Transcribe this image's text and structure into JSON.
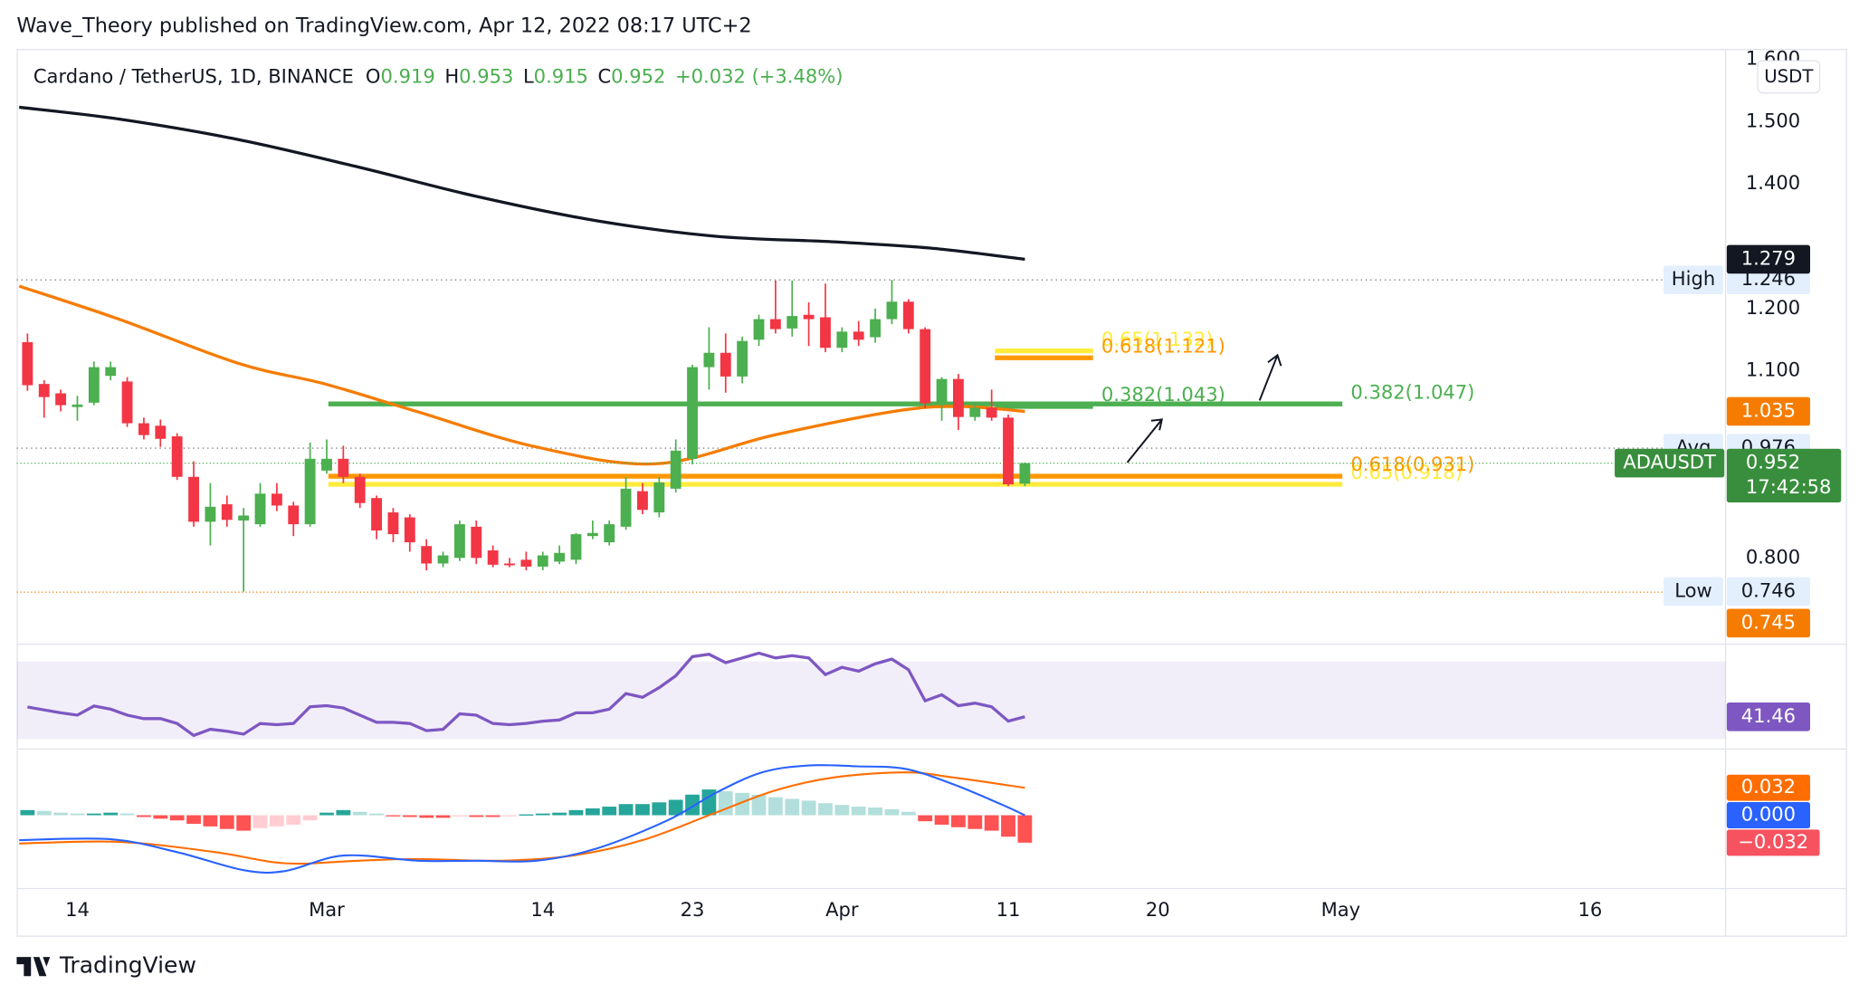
{
  "header": {
    "text": "Wave_Theory published on TradingView.com, Apr 12, 2022 08:17 UTC+2"
  },
  "footer": {
    "brand": "TradingView"
  },
  "chart_data": {
    "type": "candlestick",
    "symbol": "Cardano / TetherUS, 1D, BINANCE",
    "ohlc_keys": [
      "O",
      "H",
      "L",
      "C"
    ],
    "change_label": "+0.032 (+3.48%)",
    "currency": "USDT",
    "symbol_tag": "ADAUSDT",
    "countdown": "17:42:58",
    "up_color": "#4caf50",
    "down_color": "#f23645",
    "open": [
      1.146,
      1.079,
      1.064,
      1.042,
      1.049,
      1.092,
      1.083,
      1.016,
      1.012,
      0.995,
      0.93,
      0.858,
      0.886,
      0.86,
      0.854,
      0.903,
      0.884,
      0.854,
      0.94,
      0.959,
      0.93,
      0.896,
      0.873,
      0.865,
      0.819,
      0.791,
      0.8,
      0.85,
      0.812,
      0.791,
      0.797,
      0.786,
      0.794,
      0.797,
      0.835,
      0.825,
      0.85,
      0.907,
      0.873,
      0.911,
      0.959,
      1.106,
      1.129,
      1.091,
      1.15,
      1.183,
      1.168,
      1.19,
      1.186,
      1.137,
      1.163,
      1.154,
      1.183,
      1.211,
      1.167,
      1.048,
      1.087,
      1.026,
      1.041,
      1.025,
      0.919
    ],
    "high": [
      1.16,
      1.085,
      1.07,
      1.06,
      1.115,
      1.115,
      1.09,
      1.025,
      1.022,
      1.0,
      0.955,
      0.92,
      0.9,
      0.88,
      0.92,
      0.92,
      0.89,
      0.985,
      0.99,
      0.98,
      0.935,
      0.9,
      0.88,
      0.87,
      0.83,
      0.81,
      0.86,
      0.86,
      0.82,
      0.8,
      0.81,
      0.81,
      0.82,
      0.84,
      0.86,
      0.86,
      0.93,
      0.92,
      0.93,
      0.99,
      1.11,
      1.17,
      1.16,
      1.155,
      1.19,
      1.245,
      1.245,
      1.21,
      1.24,
      1.17,
      1.18,
      1.2,
      1.246,
      1.215,
      1.17,
      1.09,
      1.095,
      1.05,
      1.07,
      1.03,
      0.953
    ],
    "low": [
      1.068,
      1.025,
      1.035,
      1.02,
      1.045,
      1.085,
      1.01,
      0.99,
      0.978,
      0.925,
      0.85,
      0.82,
      0.85,
      0.746,
      0.85,
      0.875,
      0.835,
      0.85,
      0.935,
      0.92,
      0.88,
      0.83,
      0.825,
      0.81,
      0.78,
      0.785,
      0.795,
      0.79,
      0.785,
      0.785,
      0.78,
      0.78,
      0.79,
      0.79,
      0.83,
      0.82,
      0.845,
      0.87,
      0.865,
      0.905,
      0.95,
      1.07,
      1.065,
      1.08,
      1.14,
      1.16,
      1.155,
      1.14,
      1.13,
      1.13,
      1.14,
      1.145,
      1.175,
      1.16,
      1.04,
      1.02,
      1.005,
      1.02,
      1.02,
      0.915,
      0.915
    ],
    "close": [
      1.077,
      1.058,
      1.045,
      1.046,
      1.106,
      1.106,
      1.016,
      0.997,
      0.991,
      0.93,
      0.858,
      0.882,
      0.861,
      0.868,
      0.903,
      0.884,
      0.854,
      0.959,
      0.959,
      0.93,
      0.888,
      0.844,
      0.838,
      0.825,
      0.791,
      0.804,
      0.854,
      0.8,
      0.789,
      0.79,
      0.786,
      0.804,
      0.808,
      0.838,
      0.84,
      0.854,
      0.911,
      0.877,
      0.921,
      0.972,
      1.106,
      1.129,
      1.091,
      1.148,
      1.183,
      1.167,
      1.188,
      1.183,
      1.137,
      1.163,
      1.15,
      1.183,
      1.211,
      1.167,
      1.048,
      1.087,
      1.026,
      1.041,
      1.025,
      0.918,
      0.952
    ],
    "xlim": [
      -0.65,
      102.15
    ],
    "xticks": [
      {
        "value": 3,
        "label": "14"
      },
      {
        "value": 18,
        "label": "Mar"
      },
      {
        "value": 31,
        "label": "14"
      },
      {
        "value": 40,
        "label": "23"
      },
      {
        "value": 49,
        "label": "Apr"
      },
      {
        "value": 59,
        "label": "11"
      },
      {
        "value": 68,
        "label": "20"
      },
      {
        "value": 79,
        "label": "May"
      },
      {
        "value": 94,
        "label": "16"
      }
    ],
    "ylim": [
      0.6625,
      1.6147
    ],
    "yticks": [
      {
        "value": 1.6,
        "label": "1.600"
      },
      {
        "value": 1.5,
        "label": "1.500"
      },
      {
        "value": 1.4,
        "label": "1.400"
      },
      {
        "value": 1.2,
        "label": "1.200"
      },
      {
        "value": 1.1,
        "label": "1.100"
      },
      {
        "value": 0.8,
        "label": "0.800"
      }
    ],
    "overlays": [
      {
        "color": "#131722",
        "x": [
          -0.5,
          5.5,
          12.7,
          19.9,
          27,
          34.2,
          41.4,
          48.5,
          54.3,
          60
        ],
        "values": [
          1.523,
          1.504,
          1.471,
          1.427,
          1.38,
          1.341,
          1.316,
          1.307,
          1.297,
          1.279
        ]
      },
      {
        "color": "#f57c00",
        "x": [
          -0.5,
          5.5,
          12.7,
          17.9,
          23.4,
          30.6,
          37.8,
          44.9,
          52.1,
          56,
          60
        ],
        "values": [
          1.236,
          1.183,
          1.112,
          1.079,
          1.035,
          0.978,
          0.951,
          0.997,
          1.035,
          1.043,
          1.035
        ]
      }
    ],
    "levels": [
      {
        "label": "High",
        "value": 1.246,
        "line": true
      },
      {
        "label": "Avg",
        "value": 0.976,
        "line": true
      },
      {
        "label": "Low",
        "value": 0.746,
        "line": false
      }
    ],
    "price_lines": [
      {
        "value": 0.745,
        "color": "#f57c00"
      }
    ],
    "fib": [
      {
        "label": "0.65(1.132)",
        "value": 1.132,
        "x": [
          58.2,
          64.1
        ],
        "color": "#ffeb3b"
      },
      {
        "label": "0.618(1.121)",
        "value": 1.121,
        "x": [
          58.2,
          64.1
        ],
        "color": "#ff9800"
      },
      {
        "label": "0.382(1.047)",
        "value": 1.047,
        "x": [
          18.1,
          79.1
        ],
        "color": "#4caf50"
      },
      {
        "label": "0.382(1.043)",
        "value": 1.043,
        "x": [
          58.2,
          64.1
        ],
        "color": "#4caf50"
      },
      {
        "label": "0.65(0.918)",
        "value": 0.918,
        "x": [
          18.1,
          79.1
        ],
        "color": "#ffeb3b"
      },
      {
        "label": "0.618(0.931)",
        "value": 0.931,
        "x": [
          18.1,
          79.1
        ],
        "color": "#ff9800"
      }
    ]
  },
  "rsi": {
    "color": "#7e57c2",
    "ylim": [
      25.1,
      78.6
    ],
    "band": [
      30,
      70
    ],
    "values": [
      46.5,
      45,
      43.5,
      42.3,
      47,
      45.4,
      42.3,
      40.5,
      40.5,
      38,
      31.8,
      35,
      34,
      32.5,
      38,
      37.4,
      38,
      46.6,
      47.2,
      46,
      42.3,
      38.6,
      38.6,
      38,
      34.3,
      35,
      43,
      42.3,
      38,
      37.4,
      38,
      39.2,
      39.8,
      43.5,
      43.5,
      45.4,
      53.4,
      51.5,
      56.5,
      62.6,
      72.5,
      73.7,
      69.4,
      71.8,
      74.3,
      71.8,
      73,
      71.8,
      63.2,
      67,
      65,
      68.8,
      71.2,
      65.7,
      49.7,
      52.8,
      47.2,
      48.5,
      46.6,
      39.2,
      41.46
    ]
  },
  "macd": {
    "ylim": [
      -0.0847,
      0.0764
    ],
    "hist_colors": [
      "#26a69a",
      "#b2dfdb",
      "#ff5252",
      "#ffcdd2"
    ],
    "hist": [
      0.006,
      0.005,
      0.003,
      0.002,
      0.002,
      0.003,
      0.002,
      -0.002,
      -0.004,
      -0.006,
      -0.01,
      -0.013,
      -0.016,
      -0.018,
      -0.015,
      -0.013,
      -0.011,
      -0.006,
      0.003,
      0.006,
      0.004,
      0.002,
      -0.001,
      -0.002,
      -0.003,
      -0.003,
      -0.001,
      -0.002,
      -0.002,
      -0.001,
      0.001,
      0.002,
      0.003,
      0.006,
      0.008,
      0.01,
      0.013,
      0.013,
      0.015,
      0.018,
      0.024,
      0.03,
      0.028,
      0.026,
      0.024,
      0.021,
      0.019,
      0.017,
      0.014,
      0.012,
      0.01,
      0.009,
      0.007,
      0.004,
      -0.007,
      -0.011,
      -0.014,
      -0.016,
      -0.018,
      -0.025,
      -0.032
    ],
    "hist_last_label": "−0.032",
    "hist_badge_color": "#f7525f",
    "macd_line": {
      "color": "#2962ff",
      "x": [
        -0.5,
        5,
        9,
        13,
        15.5,
        19,
        23.5,
        27,
        30.6,
        34.2,
        38.5,
        41.4,
        44.2,
        47,
        49.9,
        52.8,
        55.7,
        58.6,
        60
      ],
      "values": [
        -0.029,
        -0.028,
        -0.043,
        -0.064,
        -0.065,
        -0.047,
        -0.053,
        -0.053,
        -0.053,
        -0.039,
        -0.006,
        0.026,
        0.05,
        0.058,
        0.057,
        0.054,
        0.036,
        0.0125,
        0
      ],
      "last_label": "0.000"
    },
    "signal_line": {
      "color": "#ff6d00",
      "x": [
        -0.5,
        5.5,
        11.3,
        15.5,
        19.9,
        23.4,
        28.5,
        32.8,
        37,
        41.4,
        45,
        48.5,
        52.8,
        55.7,
        60
      ],
      "values": [
        -0.033,
        -0.031,
        -0.043,
        -0.056,
        -0.053,
        -0.051,
        -0.053,
        -0.047,
        -0.029,
        0.003,
        0.029,
        0.044,
        0.05,
        0.044,
        0.032
      ]
    }
  }
}
